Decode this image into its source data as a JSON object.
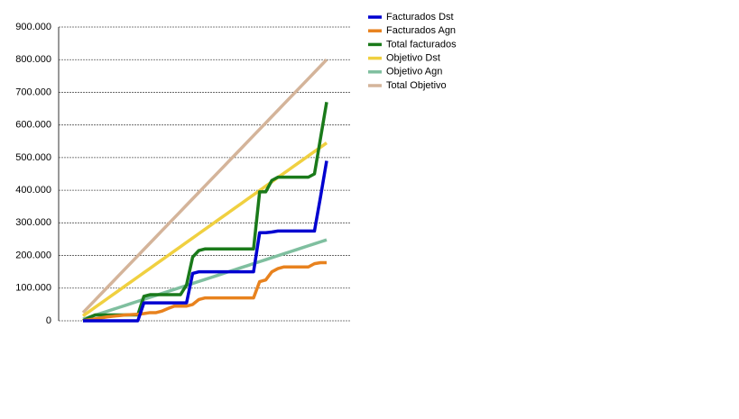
{
  "chart_data": {
    "type": "line",
    "categories": [
      null,
      null,
      null,
      null,
      null,
      null,
      null,
      null,
      null,
      null,
      null,
      null,
      null,
      null,
      null,
      null,
      null,
      null,
      null,
      null,
      null,
      null,
      null,
      null,
      null,
      null,
      null,
      null,
      null,
      null,
      null,
      null,
      null,
      null,
      null,
      null,
      null,
      null,
      null,
      null,
      null
    ],
    "ylim": [
      0,
      900000
    ],
    "yticks": [
      0,
      {
        "value": 100000,
        "label": "100.000"
      },
      {
        "value": 200000,
        "label": "200.000"
      },
      {
        "value": 300000,
        "label": "300.000"
      },
      {
        "value": 400000,
        "label": "400.000"
      },
      {
        "value": 500000,
        "label": "500.000"
      },
      {
        "value": 600000,
        "label": "600.000"
      },
      {
        "value": 700000,
        "label": "700.000"
      },
      {
        "value": 800000,
        "label": "800.000"
      },
      {
        "value": 900000,
        "label": "900.000"
      }
    ],
    "grid": true,
    "legend": "right",
    "series": [
      {
        "name": "Facturados Dst",
        "color": "#0000d0",
        "values": [
          0,
          0,
          0,
          0,
          0,
          0,
          0,
          0,
          0,
          0,
          55000,
          55000,
          55000,
          55000,
          55000,
          55000,
          55000,
          55000,
          145000,
          150000,
          150000,
          150000,
          150000,
          150000,
          150000,
          150000,
          150000,
          150000,
          150000,
          270000,
          270000,
          272000,
          275000,
          275000,
          275000,
          275000,
          275000,
          275000,
          275000,
          380000,
          490000
        ]
      },
      {
        "name": "Facturados Agn",
        "color": "#e8821e",
        "values": [
          0,
          3000,
          6000,
          9000,
          12000,
          14000,
          16000,
          18000,
          19000,
          20000,
          22000,
          25000,
          25000,
          30000,
          38000,
          45000,
          45000,
          45000,
          50000,
          65000,
          70000,
          70000,
          70000,
          70000,
          70000,
          70000,
          70000,
          70000,
          70000,
          120000,
          125000,
          150000,
          160000,
          165000,
          165000,
          165000,
          165000,
          165000,
          175000,
          178000,
          178000
        ]
      },
      {
        "name": "Total facturados",
        "color": "#1a7a1a",
        "values": [
          0,
          10000,
          18000,
          18000,
          18000,
          18000,
          18000,
          18000,
          18000,
          18000,
          75000,
          80000,
          80000,
          80000,
          80000,
          80000,
          80000,
          110000,
          195000,
          215000,
          220000,
          220000,
          220000,
          220000,
          220000,
          220000,
          220000,
          220000,
          220000,
          395000,
          395000,
          430000,
          440000,
          440000,
          440000,
          440000,
          440000,
          440000,
          450000,
          560000,
          670000
        ]
      },
      {
        "name": "Objetivo Dst",
        "color": "#f0d040",
        "values": [
          15000,
          28250,
          41500,
          54750,
          68000,
          81250,
          94500,
          107750,
          121000,
          134250,
          147500,
          160750,
          174000,
          187250,
          200500,
          213750,
          227000,
          240250,
          253500,
          266750,
          280000,
          293250,
          306500,
          319750,
          333000,
          346250,
          359500,
          372750,
          386000,
          399250,
          412500,
          425750,
          439000,
          452250,
          465500,
          478750,
          492000,
          505250,
          518500,
          531750,
          545000
        ]
      },
      {
        "name": "Objetivo Agn",
        "color": "#7fbf9f",
        "values": [
          5000,
          11075,
          17150,
          23225,
          29300,
          35375,
          41450,
          47525,
          53600,
          59675,
          65750,
          71825,
          77900,
          83975,
          90050,
          96125,
          102200,
          108275,
          114350,
          120425,
          126500,
          132575,
          138650,
          144725,
          150800,
          156875,
          162950,
          169025,
          175100,
          181175,
          187250,
          193325,
          199400,
          205475,
          211550,
          217625,
          223700,
          229775,
          235850,
          241925,
          248000
        ]
      },
      {
        "name": "Total Objetivo",
        "color": "#d4b49a",
        "values": [
          25000,
          44375,
          63750,
          83125,
          102500,
          121875,
          141250,
          160625,
          180000,
          199375,
          218750,
          238125,
          257500,
          276875,
          296250,
          315625,
          335000,
          354375,
          373750,
          393125,
          412500,
          431875,
          451250,
          470625,
          490000,
          509375,
          528750,
          548125,
          567500,
          586875,
          606250,
          625625,
          645000,
          664375,
          683750,
          703125,
          722500,
          741875,
          761250,
          780625,
          800000
        ]
      }
    ]
  }
}
